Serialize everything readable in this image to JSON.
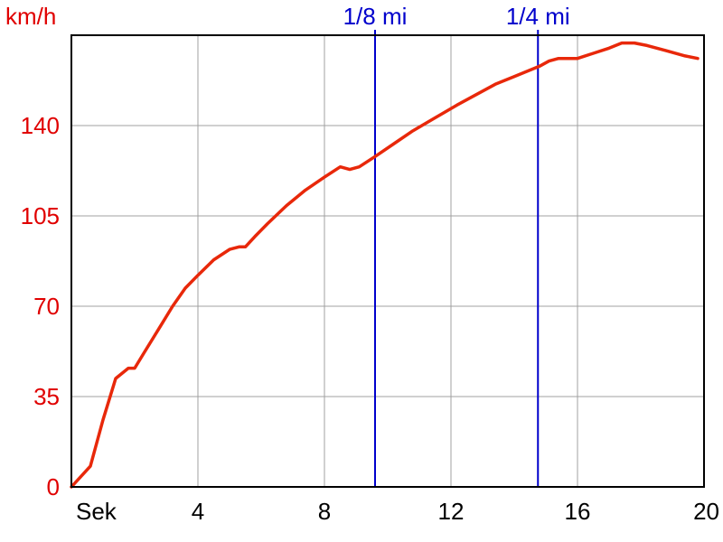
{
  "chart_data": {
    "type": "line",
    "title": "",
    "xlabel": "Sek",
    "ylabel": "km/h",
    "xlim": [
      0,
      20
    ],
    "ylim": [
      0,
      175
    ],
    "x_ticks": [
      4,
      8,
      12,
      16,
      20
    ],
    "x_tick_labels": [
      "4",
      "8",
      "12",
      "16",
      "20"
    ],
    "y_ticks": [
      0,
      35,
      70,
      105,
      140
    ],
    "y_tick_labels": [
      "0",
      "35",
      "70",
      "105",
      "140"
    ],
    "grid": true,
    "legend": "none",
    "colors": {
      "line": "#e8280a",
      "markers": "#0000cc",
      "grid": "#a0a0a0",
      "axis": "#000000",
      "y_labels": "#e00000"
    },
    "markers": [
      {
        "x": 9.6,
        "label": "1/8 mi"
      },
      {
        "x": 14.75,
        "label": "1/4 mi"
      }
    ],
    "series": [
      {
        "x": [
          0,
          0.6,
          1.0,
          1.4,
          1.8,
          2.0,
          2.3,
          2.5,
          2.8,
          3.2,
          3.6,
          4.0,
          4.5,
          5.0,
          5.3,
          5.5,
          5.8,
          6.2,
          6.8,
          7.4,
          8.0,
          8.5,
          8.8,
          9.1,
          9.6,
          10.2,
          10.8,
          11.5,
          12.2,
          12.8,
          13.4,
          14.0,
          14.8,
          15.1,
          15.4,
          15.6,
          16.0,
          16.5,
          17.0,
          17.4,
          17.8,
          18.2,
          18.8,
          19.4,
          19.8
        ],
        "y": [
          0,
          8,
          26,
          42,
          46,
          46,
          52,
          56,
          62,
          70,
          77,
          82,
          88,
          92,
          93,
          93,
          97,
          102,
          109,
          115,
          120,
          124,
          123,
          124,
          128,
          133,
          138,
          143,
          148,
          152,
          156,
          159,
          163,
          165,
          166,
          166,
          166,
          168,
          170,
          172,
          172,
          171,
          169,
          167,
          166
        ]
      }
    ]
  }
}
